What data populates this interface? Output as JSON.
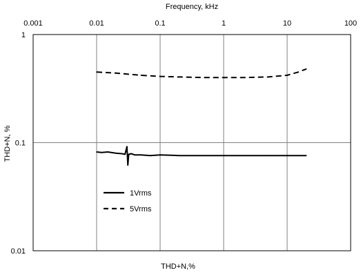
{
  "chart_data": {
    "type": "line",
    "title": "",
    "xlabel_top": "Frequency, kHz",
    "xlabel_bottom": "THD+N,%",
    "ylabel": "THD+N, %",
    "x_scale": "log",
    "y_scale": "log",
    "xlim": [
      0.001,
      100
    ],
    "ylim": [
      0.01,
      1
    ],
    "x_ticks": [
      "0.001",
      "0.01",
      "0.1",
      "1",
      "10",
      "100"
    ],
    "y_ticks": [
      "1",
      "0.1",
      "0.01"
    ],
    "grid": true,
    "legend_position": "lower-left",
    "series": [
      {
        "name": "1Vrms",
        "style": "solid",
        "color": "#000000",
        "x": [
          0.01,
          0.012,
          0.015,
          0.02,
          0.025,
          0.028,
          0.03,
          0.031,
          0.032,
          0.035,
          0.04,
          0.05,
          0.07,
          0.1,
          0.2,
          0.5,
          1,
          2,
          5,
          10,
          20
        ],
        "y": [
          0.082,
          0.081,
          0.082,
          0.08,
          0.079,
          0.078,
          0.092,
          0.062,
          0.078,
          0.079,
          0.077,
          0.077,
          0.076,
          0.077,
          0.076,
          0.076,
          0.076,
          0.076,
          0.076,
          0.076,
          0.076
        ]
      },
      {
        "name": "5Vrms",
        "style": "dashed",
        "color": "#000000",
        "x": [
          0.01,
          0.02,
          0.05,
          0.1,
          0.2,
          0.5,
          1,
          2,
          5,
          10,
          15,
          20
        ],
        "y": [
          0.45,
          0.44,
          0.42,
          0.41,
          0.405,
          0.4,
          0.4,
          0.4,
          0.405,
          0.42,
          0.45,
          0.48
        ]
      }
    ]
  }
}
